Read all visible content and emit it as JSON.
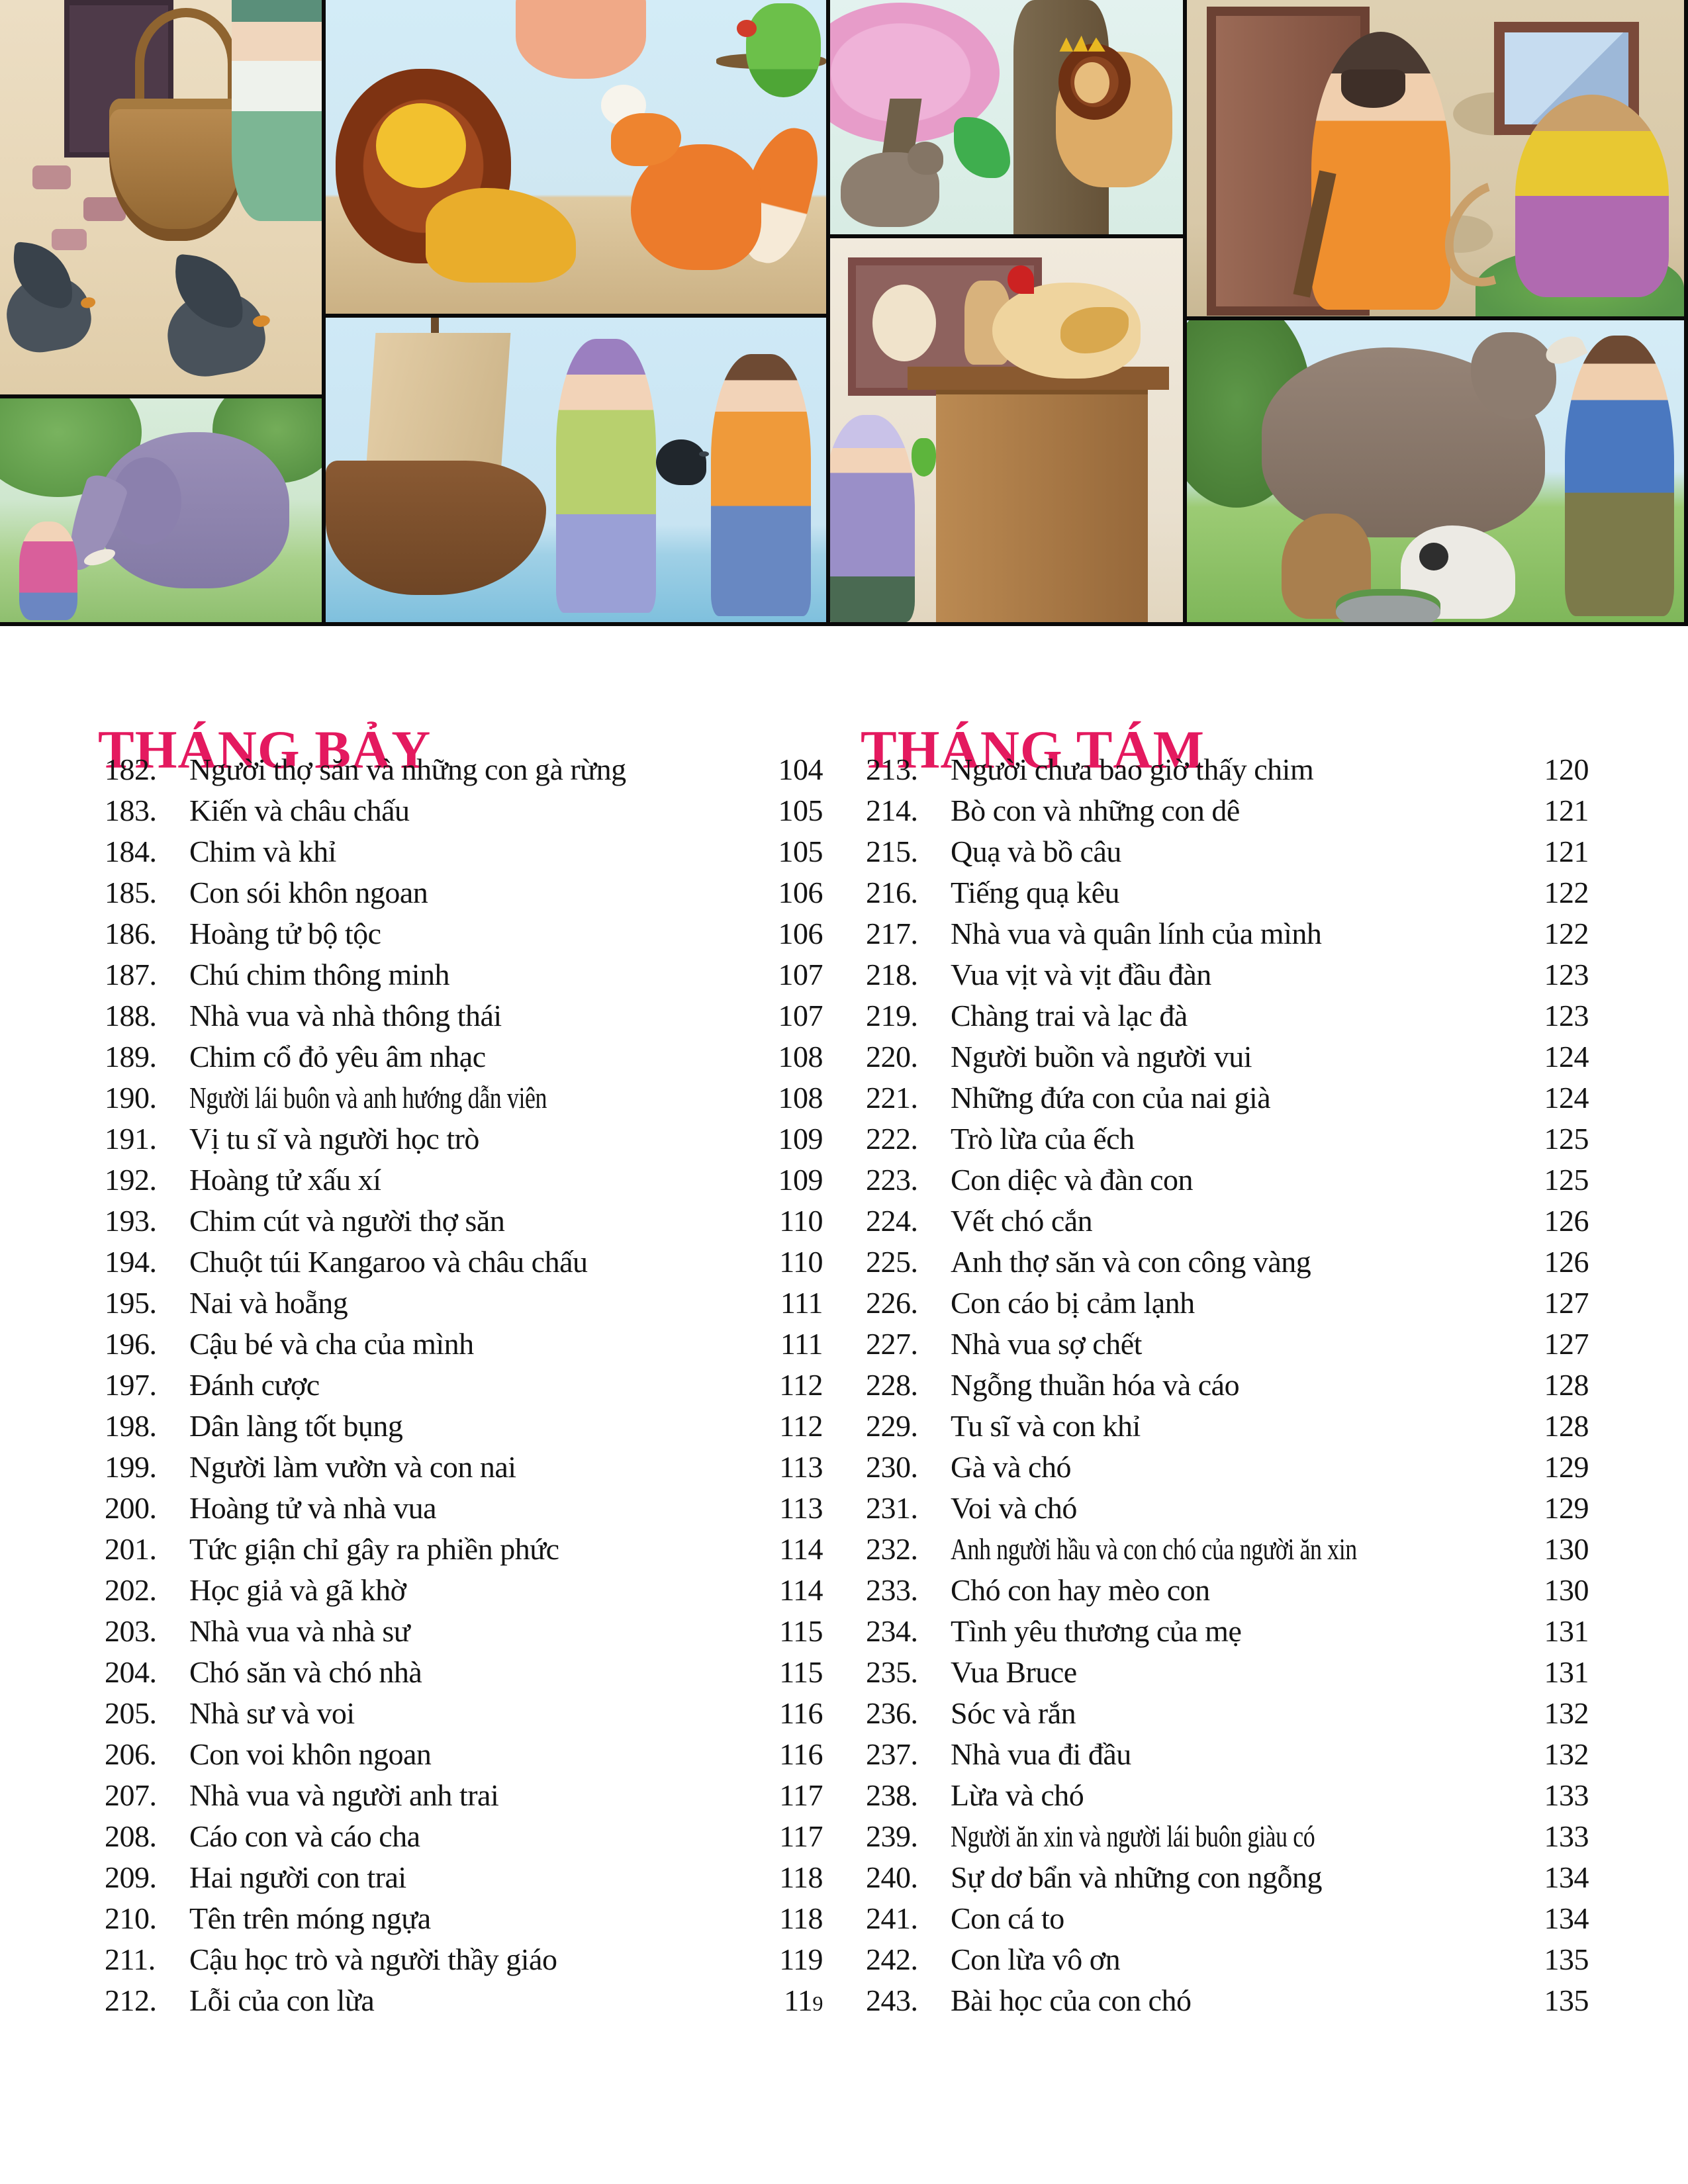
{
  "meta": {
    "kind": "book-table-of-contents",
    "language": "vi"
  },
  "colors": {
    "accent": "#e4195f",
    "text": "#141414",
    "page_background": "#ffffff",
    "collage_seam": "#0a0a0a"
  },
  "collage": {
    "panels": [
      {
        "name": "miller-lowering-basket-and-crows"
      },
      {
        "name": "elephant-and-woman"
      },
      {
        "name": "lion-and-fox-with-parrot"
      },
      {
        "name": "two-men-with-crow-by-ship"
      },
      {
        "name": "crowned-lion-in-tree-and-wolf"
      },
      {
        "name": "hen-on-cupboard-with-boy-and-parrot"
      },
      {
        "name": "bearded-man-scolding-monkey"
      },
      {
        "name": "cow-goats-and-man"
      }
    ]
  },
  "sections": [
    {
      "id": "july",
      "title": "THÁNG BẢY",
      "entries": [
        {
          "num": "182.",
          "title": "Người thợ săn và những con gà rừng",
          "page": "104"
        },
        {
          "num": "183.",
          "title": "Kiến và châu chấu",
          "page": "105"
        },
        {
          "num": "184.",
          "title": "Chim và khỉ",
          "page": "105"
        },
        {
          "num": "185.",
          "title": "Con sói khôn ngoan",
          "page": "106"
        },
        {
          "num": "186.",
          "title": "Hoàng tử bộ tộc",
          "page": "106"
        },
        {
          "num": "187.",
          "title": "Chú chim thông minh",
          "page": "107"
        },
        {
          "num": "188.",
          "title": "Nhà vua và nhà thông thái",
          "page": "107"
        },
        {
          "num": "189.",
          "title": "Chim cổ đỏ yêu âm nhạc",
          "page": "108"
        },
        {
          "num": "190.",
          "title": "Người lái buôn và anh hướng dẫn viên",
          "page": "108"
        },
        {
          "num": "191.",
          "title": "Vị tu sĩ và người học trò",
          "page": "109"
        },
        {
          "num": "192.",
          "title": "Hoàng tử xấu xí",
          "page": "109"
        },
        {
          "num": "193.",
          "title": "Chim cút và người thợ săn",
          "page": "110"
        },
        {
          "num": "194.",
          "title": "Chuột túi Kangaroo và châu chấu",
          "page": "110"
        },
        {
          "num": "195.",
          "title": "Nai và hoẵng",
          "page": "111"
        },
        {
          "num": "196.",
          "title": "Cậu bé và cha của mình",
          "page": "111"
        },
        {
          "num": "197.",
          "title": "Đánh cược",
          "page": "112"
        },
        {
          "num": "198.",
          "title": "Dân làng tốt bụng",
          "page": "112"
        },
        {
          "num": "199.",
          "title": "Người làm vườn và con nai",
          "page": "113"
        },
        {
          "num": "200.",
          "title": "Hoàng tử và nhà vua",
          "page": "113"
        },
        {
          "num": "201.",
          "title": "Tức giận chỉ gây ra phiền phức",
          "page": "114"
        },
        {
          "num": "202.",
          "title": "Học giả và gã khờ",
          "page": "114"
        },
        {
          "num": "203.",
          "title": "Nhà vua và nhà sư",
          "page": "115"
        },
        {
          "num": "204.",
          "title": "Chó săn và chó nhà",
          "page": "115"
        },
        {
          "num": "205.",
          "title": "Nhà sư và voi",
          "page": "116"
        },
        {
          "num": "206.",
          "title": "Con voi khôn ngoan",
          "page": "116"
        },
        {
          "num": "207.",
          "title": "Nhà vua và người anh trai",
          "page": "117"
        },
        {
          "num": "208.",
          "title": "Cáo con và cáo cha",
          "page": "117"
        },
        {
          "num": "209.",
          "title": "Hai người con trai",
          "page": "118"
        },
        {
          "num": "210.",
          "title": "Tên trên móng ngựa",
          "page": "118"
        },
        {
          "num": "211.",
          "title": "Cậu học trò và người thầy giáo",
          "page": "119"
        },
        {
          "num": "212.",
          "title": "Lỗi của con lừa",
          "page": "119",
          "quirk": "small-last-digit"
        }
      ]
    },
    {
      "id": "august",
      "title": "THÁNG TÁM",
      "entries": [
        {
          "num": "213.",
          "title": "Người chưa bao giờ thấy chim",
          "page": "120"
        },
        {
          "num": "214.",
          "title": "Bò con và những con dê",
          "page": "121"
        },
        {
          "num": "215.",
          "title": "Quạ và bồ câu",
          "page": "121"
        },
        {
          "num": "216.",
          "title": "Tiếng quạ kêu",
          "page": "122"
        },
        {
          "num": "217.",
          "title": "Nhà vua và quân lính của mình",
          "page": "122"
        },
        {
          "num": "218.",
          "title": "Vua vịt và vịt đầu đàn",
          "page": "123"
        },
        {
          "num": "219.",
          "title": "Chàng trai và lạc đà",
          "page": "123"
        },
        {
          "num": "220.",
          "title": "Người buồn và người vui",
          "page": "124"
        },
        {
          "num": "221.",
          "title": "Những đứa con của nai già",
          "page": "124"
        },
        {
          "num": "222.",
          "title": "Trò lừa của ếch",
          "page": "125"
        },
        {
          "num": "223.",
          "title": "Con diệc và đàn con",
          "page": "125"
        },
        {
          "num": "224.",
          "title": "Vết chó cắn",
          "page": "126"
        },
        {
          "num": "225.",
          "title": "Anh thợ săn và con công vàng",
          "page": "126"
        },
        {
          "num": "226.",
          "title": "Con cáo bị cảm lạnh",
          "page": "127"
        },
        {
          "num": "227.",
          "title": "Nhà vua sợ chết",
          "page": "127"
        },
        {
          "num": "228.",
          "title": "Ngỗng thuần hóa và cáo",
          "page": "128"
        },
        {
          "num": "229.",
          "title": "Tu sĩ và con khỉ",
          "page": "128"
        },
        {
          "num": "230.",
          "title": "Gà và chó",
          "page": "129"
        },
        {
          "num": "231.",
          "title": "Voi và chó",
          "page": "129"
        },
        {
          "num": "232.",
          "title": "Anh người hầu và con chó của người ăn xin",
          "page": "130"
        },
        {
          "num": "233.",
          "title": "Chó con hay mèo con",
          "page": "130"
        },
        {
          "num": "234.",
          "title": "Tình yêu thương của mẹ",
          "page": "131"
        },
        {
          "num": "235.",
          "title": "Vua Bruce",
          "page": "131"
        },
        {
          "num": "236.",
          "title": "Sóc và rắn",
          "page": "132"
        },
        {
          "num": "237.",
          "title": "Nhà vua đi đầu",
          "page": "132"
        },
        {
          "num": "238.",
          "title": "Lừa và chó",
          "page": "133"
        },
        {
          "num": "239.",
          "title": "Người ăn xin và người lái buôn giàu có",
          "page": "133"
        },
        {
          "num": "240.",
          "title": "Sự dơ bẩn và những con ngỗng",
          "page": "134"
        },
        {
          "num": "241.",
          "title": "Con cá to",
          "page": "134"
        },
        {
          "num": "242.",
          "title": "Con lừa vô ơn",
          "page": "135"
        },
        {
          "num": "243.",
          "title": "Bài học của con chó",
          "page": "135"
        }
      ]
    }
  ]
}
